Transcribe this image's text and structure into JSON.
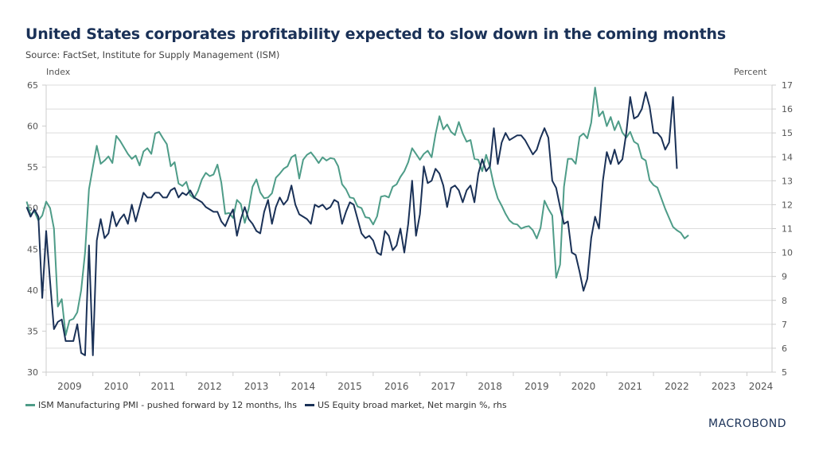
{
  "chart_data": {
    "type": "line",
    "title": "United States corporates profitability expected to slow down in the coming months",
    "subtitle": "Source: FactSet, Institute for Supply Management (ISM)",
    "ylabel_left": "Index",
    "ylabel_right": "Percent",
    "ylim_left": [
      30,
      65
    ],
    "ylim_right": [
      5,
      17
    ],
    "yticks_left": [
      "30",
      "35",
      "40",
      "45",
      "50",
      "55",
      "60",
      "65"
    ],
    "yticks_right": [
      "5",
      "6",
      "7",
      "8",
      "9",
      "10",
      "11",
      "12",
      "13",
      "14",
      "15",
      "16",
      "17"
    ],
    "x_start": "2009-01",
    "x_end": "2024-07",
    "xticks": [
      "2009",
      "2010",
      "2011",
      "2012",
      "2013",
      "2014",
      "2015",
      "2016",
      "2017",
      "2018",
      "2019",
      "2020",
      "2021",
      "2022",
      "2023",
      "2024"
    ],
    "grid": true,
    "legend_position": "bottom-left",
    "series": [
      {
        "name": "ISM Manufacturing PMI - pushed forward by 12 months, lhs",
        "axis": "left",
        "color": "#4e9c88",
        "start": "2008-08",
        "values": [
          50.8,
          49.2,
          49.6,
          48.5,
          49.1,
          50.8,
          50.0,
          47.5,
          38.0,
          38.9,
          34.5,
          36.3,
          36.5,
          37.3,
          40.0,
          44.6,
          52.3,
          55.0,
          57.6,
          55.4,
          55.8,
          56.3,
          55.5,
          58.8,
          58.2,
          57.4,
          56.6,
          56.0,
          56.4,
          55.2,
          56.9,
          57.3,
          56.6,
          59.1,
          59.3,
          58.5,
          57.8,
          55.1,
          55.6,
          53.0,
          52.7,
          53.2,
          51.6,
          51.2,
          52.1,
          53.5,
          54.3,
          53.9,
          54.1,
          55.3,
          53.1,
          49.3,
          49.4,
          48.8,
          51.0,
          50.5,
          48.2,
          49.9,
          52.6,
          53.5,
          51.9,
          51.2,
          51.3,
          51.8,
          53.7,
          54.2,
          54.8,
          55.1,
          56.2,
          56.5,
          53.6,
          55.9,
          56.5,
          56.8,
          56.2,
          55.5,
          56.2,
          55.8,
          56.1,
          56.0,
          55.1,
          52.9,
          52.3,
          51.3,
          51.2,
          50.2,
          50.0,
          48.9,
          48.8,
          48.0,
          49.0,
          51.4,
          51.5,
          51.3,
          52.6,
          52.9,
          53.8,
          54.5,
          55.6,
          57.3,
          56.6,
          55.9,
          56.6,
          57.0,
          56.2,
          59.0,
          61.2,
          59.6,
          60.2,
          59.3,
          58.9,
          60.5,
          59.1,
          58.1,
          58.3,
          56.0,
          55.9,
          54.5,
          56.5,
          55.0,
          52.8,
          51.2,
          50.3,
          49.3,
          48.5,
          48.1,
          48.0,
          47.5,
          47.7,
          47.8,
          47.3,
          46.3,
          47.6,
          50.9,
          49.9,
          49.1,
          41.5,
          43.1,
          52.6,
          56.0,
          56.0,
          55.4,
          58.7,
          59.1,
          58.5,
          60.4,
          64.7,
          61.2,
          61.8,
          60.0,
          61.1,
          59.5,
          60.6,
          59.2,
          58.6,
          59.3,
          58.1,
          57.8,
          56.1,
          55.8,
          53.4,
          52.8,
          52.5,
          51.2,
          49.9,
          48.8,
          47.7,
          47.3,
          47.0,
          46.3,
          46.7
        ]
      },
      {
        "name": "US Equity broad market, Net margin %, rhs",
        "axis": "right",
        "color": "#1a3157",
        "start": "2008-08",
        "values": [
          11.9,
          11.5,
          11.8,
          11.5,
          8.1,
          10.9,
          8.8,
          6.8,
          7.1,
          7.2,
          6.3,
          6.3,
          6.3,
          7.0,
          5.8,
          5.7,
          10.3,
          5.7,
          10.5,
          11.4,
          10.6,
          10.8,
          11.7,
          11.1,
          11.4,
          11.6,
          11.2,
          12.0,
          11.3,
          11.9,
          12.5,
          12.3,
          12.3,
          12.5,
          12.5,
          12.3,
          12.3,
          12.6,
          12.7,
          12.3,
          12.5,
          12.4,
          12.6,
          12.3,
          12.2,
          12.1,
          11.9,
          11.8,
          11.7,
          11.7,
          11.3,
          11.1,
          11.5,
          11.8,
          10.7,
          11.4,
          11.9,
          11.4,
          11.2,
          10.9,
          10.8,
          11.7,
          12.2,
          11.2,
          11.9,
          12.3,
          12.0,
          12.2,
          12.8,
          12.0,
          11.6,
          11.5,
          11.4,
          11.2,
          12.0,
          11.9,
          12.0,
          11.8,
          11.9,
          12.2,
          12.1,
          11.2,
          11.7,
          12.1,
          12.0,
          11.4,
          10.8,
          10.6,
          10.7,
          10.5,
          10.0,
          9.9,
          10.9,
          10.7,
          10.1,
          10.3,
          11.0,
          10.0,
          11.2,
          13.0,
          10.7,
          11.6,
          13.6,
          12.9,
          13.0,
          13.5,
          13.3,
          12.8,
          11.9,
          12.7,
          12.8,
          12.6,
          12.1,
          12.6,
          12.8,
          12.1,
          13.3,
          13.9,
          13.4,
          13.6,
          15.2,
          13.7,
          14.6,
          15.0,
          14.7,
          14.8,
          14.9,
          14.9,
          14.7,
          14.4,
          14.1,
          14.3,
          14.8,
          15.2,
          14.8,
          13.0,
          12.7,
          11.9,
          11.2,
          11.3,
          10.0,
          9.9,
          9.2,
          8.4,
          8.9,
          10.6,
          11.5,
          11.0,
          13.0,
          14.2,
          13.7,
          14.3,
          13.7,
          13.9,
          15.0,
          16.5,
          15.6,
          15.7,
          16.0,
          16.7,
          16.1,
          15.0,
          15.0,
          14.8,
          14.3,
          14.6,
          16.5,
          13.5
        ]
      }
    ]
  },
  "legend": {
    "items": [
      {
        "label": "ISM Manufacturing PMI - pushed forward by 12 months, lhs",
        "color": "#4e9c88"
      },
      {
        "label": "US Equity broad market, Net margin %, rhs",
        "color": "#1a3157"
      }
    ]
  },
  "branding": {
    "logo_text": "MACROBOND"
  }
}
